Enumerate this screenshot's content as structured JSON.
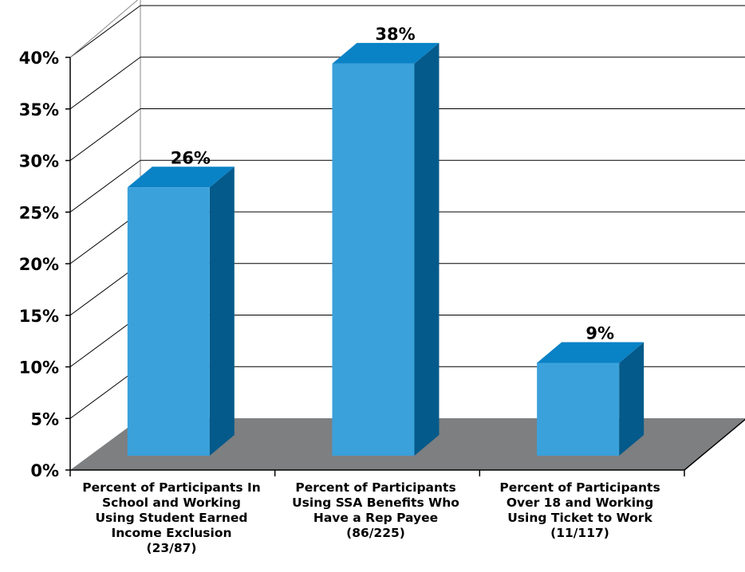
{
  "chart_data": {
    "type": "bar",
    "categories": [
      "Percent of Participants In\nSchool and Working\nUsing Student Earned\nIncome Exclusion\n(23/87)",
      "Percent of Participants\nUsing SSA Benefits Who\nHave a Rep Payee\n(86/225)",
      "Percent of Participants\nOver 18 and Working\nUsing Ticket to Work\n(11/117)"
    ],
    "values": [
      26,
      38,
      9
    ],
    "data_labels": [
      "26%",
      "38%",
      "9%"
    ],
    "ytick_labels": [
      "0%",
      "5%",
      "10%",
      "15%",
      "20%",
      "25%",
      "30%",
      "35%",
      "40%"
    ],
    "ylim": [
      0,
      40
    ],
    "grid": true,
    "style": "3d",
    "colors": {
      "bar_front": "#3aa1db",
      "bar_top": "#0a82c6",
      "bar_side": "#045a8a",
      "floor": "#7d7f81",
      "grid": "#000000"
    }
  }
}
